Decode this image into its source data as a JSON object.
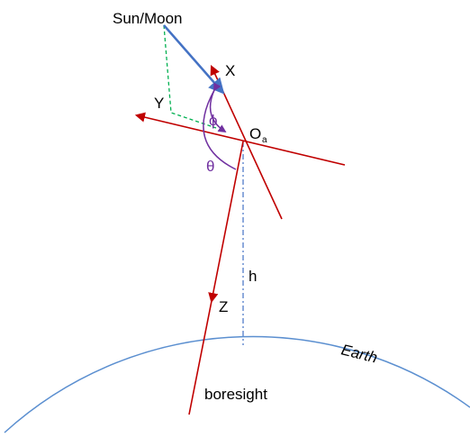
{
  "labels": {
    "source": "Sun/Moon",
    "x_axis": "X",
    "y_axis": "Y",
    "phi": "ϕ",
    "origin": "O",
    "origin_sub": "a",
    "theta": "θ",
    "height": "h",
    "z_axis": "Z",
    "earth": "Earth",
    "boresight": "boresight"
  }
}
